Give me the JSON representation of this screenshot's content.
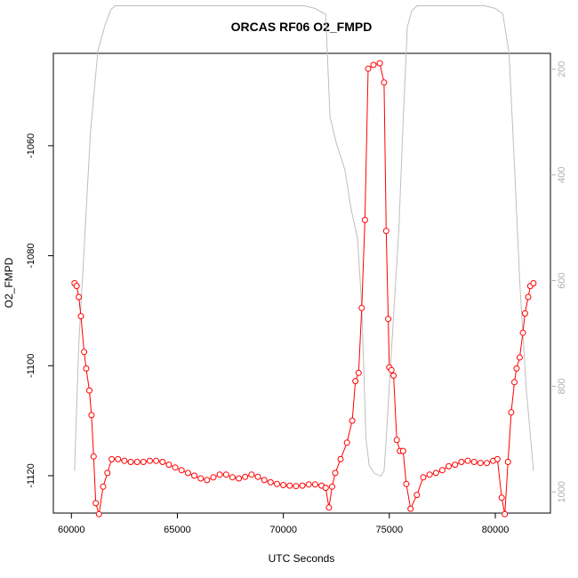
{
  "chart_data": {
    "type": "line",
    "title": "ORCAS RF06 O2_FMPD",
    "xlabel": "UTC Seconds",
    "ylabel": "O2_FMPD",
    "xlim": [
      59150,
      82600
    ],
    "ylim": [
      -1126.8,
      -1043.2
    ],
    "y2lim": [
      1040,
      170
    ],
    "x_ticks": [
      60000,
      65000,
      70000,
      75000,
      80000
    ],
    "y_ticks": [
      -1120,
      -1100,
      -1080,
      -1060
    ],
    "y2_ticks": [
      200,
      400,
      600,
      800,
      1000
    ],
    "grid": false,
    "series": [
      {
        "color": "#ff0000",
        "marker": "open-circle",
        "x": [
          60150,
          60250,
          60350,
          60450,
          60600,
          60700,
          60850,
          60950,
          61050,
          61150,
          61300,
          61500,
          61700,
          61900,
          62200,
          62500,
          62800,
          63100,
          63400,
          63700,
          64000,
          64300,
          64600,
          64900,
          65200,
          65500,
          65800,
          66100,
          66400,
          66700,
          67000,
          67300,
          67600,
          67900,
          68200,
          68500,
          68800,
          69100,
          69400,
          69700,
          70000,
          70300,
          70600,
          70900,
          71200,
          71500,
          71800,
          72000,
          72150,
          72300,
          72450,
          72700,
          73000,
          73250,
          73400,
          73550,
          73700,
          73850,
          74000,
          74250,
          74550,
          74750,
          74850,
          74950,
          75000,
          75100,
          75200,
          75350,
          75500,
          75650,
          75800,
          76000,
          76300,
          76600,
          76900,
          77200,
          77500,
          77800,
          78100,
          78400,
          78700,
          79000,
          79300,
          79600,
          79900,
          80100,
          80300,
          80450,
          80600,
          80750,
          80900,
          81000,
          81150,
          81300,
          81400,
          81550,
          81650,
          81800
        ],
        "y": [
          -1085,
          -1085.5,
          -1087.5,
          -1091,
          -1097.5,
          -1100.5,
          -1104.5,
          -1109,
          -1116.5,
          -1125,
          -1127,
          -1122,
          -1119.5,
          -1117,
          -1117,
          -1117.3,
          -1117.5,
          -1117.5,
          -1117.5,
          -1117.3,
          -1117.3,
          -1117.5,
          -1118,
          -1118.5,
          -1119,
          -1119.5,
          -1120,
          -1120.5,
          -1120.8,
          -1120.3,
          -1119.8,
          -1119.8,
          -1120.3,
          -1120.5,
          -1120.2,
          -1119.8,
          -1120.2,
          -1120.8,
          -1121.2,
          -1121.5,
          -1121.7,
          -1121.8,
          -1121.9,
          -1121.8,
          -1121.6,
          -1121.6,
          -1121.8,
          -1122.2,
          -1125.8,
          -1122,
          -1119.5,
          -1117,
          -1114,
          -1110,
          -1102.8,
          -1101.3,
          -1089.5,
          -1073.5,
          -1046,
          -1045.3,
          -1045,
          -1048.5,
          -1075.5,
          -1091.5,
          -1100.3,
          -1100.8,
          -1101.8,
          -1113.5,
          -1115.5,
          -1115.5,
          -1121.5,
          -1126,
          -1123.5,
          -1120.3,
          -1119.8,
          -1119.5,
          -1119,
          -1118.3,
          -1118,
          -1117.5,
          -1117.3,
          -1117.5,
          -1117.7,
          -1117.7,
          -1117.3,
          -1117,
          -1124,
          -1127,
          -1117.5,
          -1108.5,
          -1103,
          -1100.5,
          -1098.5,
          -1094,
          -1090.5,
          -1087.5,
          -1085.5,
          -1085
        ]
      },
      {
        "color": "#bebebe",
        "axis": "right",
        "x": [
          60150,
          60350,
          60600,
          60900,
          61250,
          61600,
          61850,
          62050,
          62400,
          71000,
          71500,
          72000,
          72200,
          72500,
          72900,
          73200,
          73500,
          73700,
          73900,
          74050,
          74300,
          74600,
          74750,
          74850,
          75150,
          75450,
          75650,
          75850,
          76050,
          76300,
          79500,
          80000,
          80350,
          80650,
          80900,
          81150,
          81450,
          81800
        ],
        "y": [
          960,
          720,
          540,
          320,
          165,
          115,
          88,
          80,
          80,
          80,
          85,
          96,
          290,
          340,
          390,
          465,
          520,
          650,
          900,
          950,
          965,
          970,
          960,
          900,
          700,
          500,
          300,
          120,
          90,
          80,
          80,
          85,
          95,
          170,
          380,
          600,
          800,
          960
        ]
      }
    ]
  }
}
